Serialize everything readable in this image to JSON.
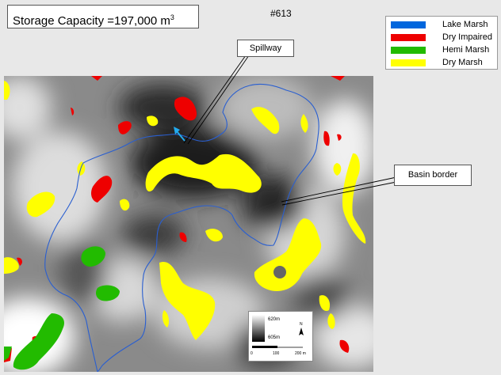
{
  "title": {
    "prefix": "Storage Capacity =",
    "value": "197,000",
    "unit": "m",
    "unit_power": "3"
  },
  "map_id": "#613",
  "legend": [
    {
      "label": "Lake Marsh",
      "color": "#0066dd"
    },
    {
      "label": "Dry Impaired",
      "color": "#ee0000"
    },
    {
      "label": "Hemi Marsh",
      "color": "#22bb00"
    },
    {
      "label": "Dry Marsh",
      "color": "#ffff00"
    }
  ],
  "callouts": {
    "spillway": "Spillway",
    "basin_border": "Basin border"
  },
  "scalebar": {
    "elev_high": "620m",
    "elev_low": "605m",
    "north": "N",
    "dist_ticks": [
      "0",
      "100",
      "200 m"
    ]
  },
  "colors": {
    "basin_border": "#2a5fd0",
    "arrow": "#22aaee"
  }
}
